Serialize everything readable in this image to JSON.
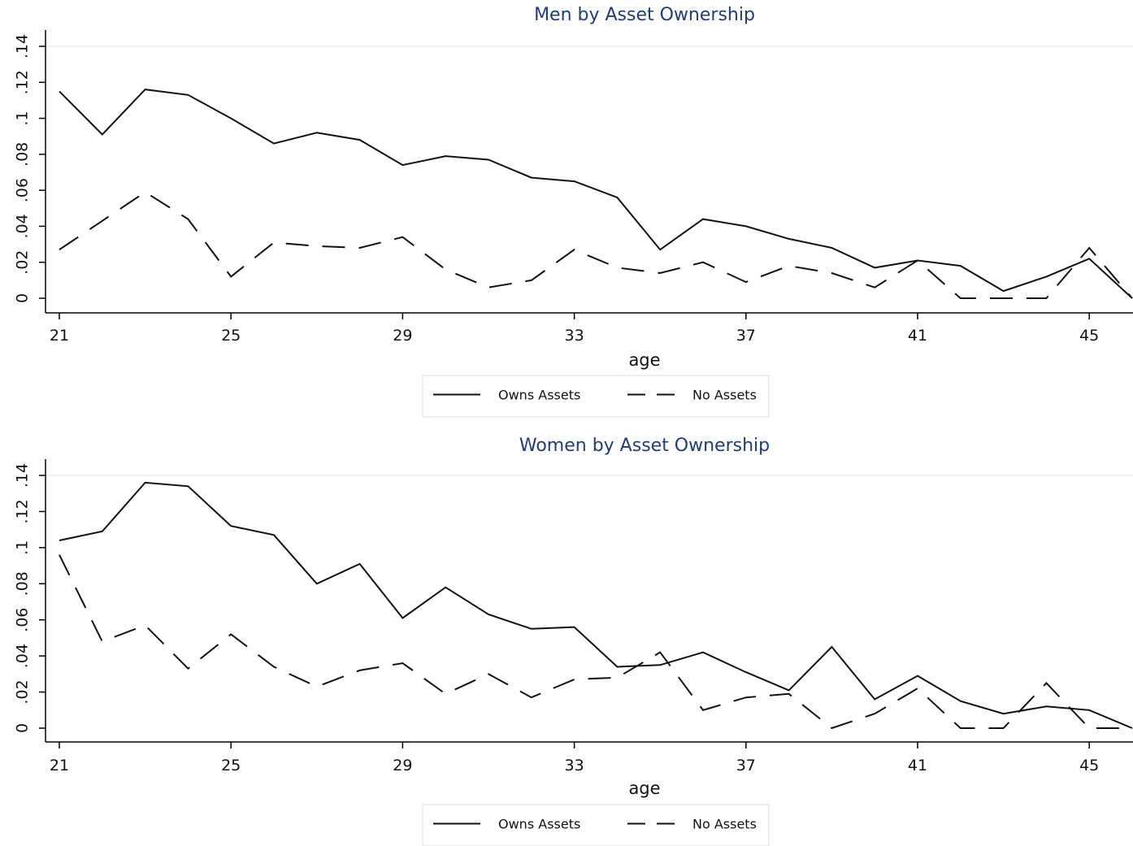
{
  "chart_data": [
    {
      "type": "line",
      "title": "Men by Asset Ownership",
      "xlabel": "age",
      "ylabel": "",
      "xlim": [
        21,
        46
      ],
      "ylim": [
        0,
        0.14
      ],
      "x_ticks": [
        21,
        25,
        29,
        33,
        37,
        41,
        45
      ],
      "y_ticks": [
        0,
        0.02,
        0.04,
        0.06,
        0.08,
        0.1,
        0.12,
        0.14
      ],
      "y_tick_labels": [
        "0",
        ".02",
        ".04",
        ".06",
        ".08",
        ".1",
        ".12",
        ".14"
      ],
      "grid": true,
      "legend_position": "bottom",
      "x": [
        21,
        22,
        23,
        24,
        25,
        26,
        27,
        28,
        29,
        30,
        31,
        32,
        33,
        34,
        35,
        36,
        37,
        38,
        39,
        40,
        41,
        42,
        43,
        44,
        45,
        46
      ],
      "series": [
        {
          "name": "Owns Assets",
          "style": "solid",
          "values": [
            0.115,
            0.091,
            0.116,
            0.113,
            0.1,
            0.086,
            0.092,
            0.088,
            0.074,
            0.079,
            0.077,
            0.067,
            0.065,
            0.056,
            0.027,
            0.044,
            0.04,
            0.033,
            0.028,
            0.017,
            0.021,
            0.018,
            0.004,
            0.012,
            0.022,
            0.0
          ]
        },
        {
          "name": "No Assets",
          "style": "dashed",
          "values": [
            0.027,
            0.043,
            0.059,
            0.044,
            0.012,
            0.031,
            0.029,
            0.028,
            0.034,
            0.016,
            0.006,
            0.01,
            0.027,
            0.017,
            0.014,
            0.02,
            0.009,
            0.018,
            0.014,
            0.006,
            0.021,
            0.0,
            0.0,
            0.0,
            0.028,
            0.0
          ]
        }
      ]
    },
    {
      "type": "line",
      "title": "Women by Asset Ownership",
      "xlabel": "age",
      "ylabel": "",
      "xlim": [
        21,
        46
      ],
      "ylim": [
        0,
        0.14
      ],
      "x_ticks": [
        21,
        25,
        29,
        33,
        37,
        41,
        45
      ],
      "y_ticks": [
        0,
        0.02,
        0.04,
        0.06,
        0.08,
        0.1,
        0.12,
        0.14
      ],
      "y_tick_labels": [
        "0",
        ".02",
        ".04",
        ".06",
        ".08",
        ".1",
        ".12",
        ".14"
      ],
      "grid": true,
      "legend_position": "bottom",
      "x": [
        21,
        22,
        23,
        24,
        25,
        26,
        27,
        28,
        29,
        30,
        31,
        32,
        33,
        34,
        35,
        36,
        37,
        38,
        39,
        40,
        41,
        42,
        43,
        44,
        45,
        46
      ],
      "series": [
        {
          "name": "Owns Assets",
          "style": "solid",
          "values": [
            0.104,
            0.109,
            0.136,
            0.134,
            0.112,
            0.107,
            0.08,
            0.091,
            0.061,
            0.078,
            0.063,
            0.055,
            0.056,
            0.034,
            0.035,
            0.042,
            0.031,
            0.021,
            0.045,
            0.016,
            0.029,
            0.015,
            0.008,
            0.012,
            0.01,
            0.0
          ]
        },
        {
          "name": "No Assets",
          "style": "dashed",
          "values": [
            0.096,
            0.048,
            0.057,
            0.033,
            0.052,
            0.034,
            0.023,
            0.032,
            0.036,
            0.019,
            0.03,
            0.017,
            0.027,
            0.028,
            0.042,
            0.01,
            0.017,
            0.019,
            0.0,
            0.008,
            0.022,
            0.0,
            0.0,
            0.025,
            0.0,
            0.0
          ]
        }
      ]
    }
  ]
}
